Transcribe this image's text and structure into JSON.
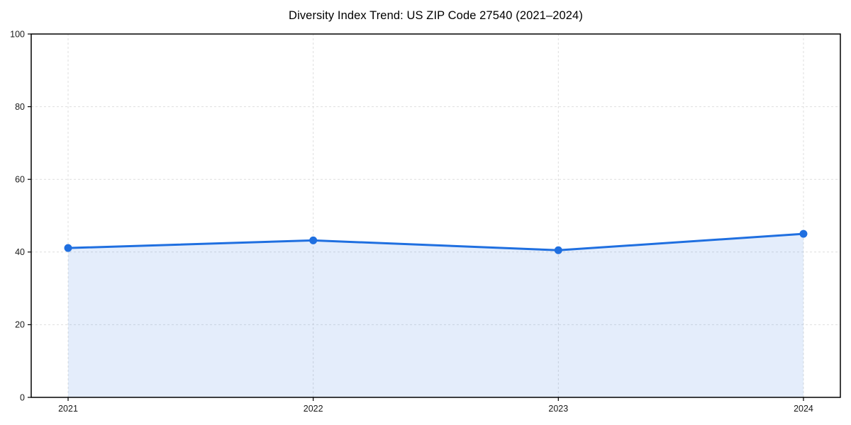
{
  "chart_data": {
    "type": "line",
    "title": "Diversity Index Trend: US ZIP Code 27540 (2021–2024)",
    "categories": [
      "2021",
      "2022",
      "2023",
      "2024"
    ],
    "series": [
      {
        "name": "Diversity Index",
        "values": [
          41.1,
          43.2,
          40.5,
          45.0
        ]
      }
    ],
    "xlabel": "",
    "ylabel": "",
    "ylim": [
      0,
      100
    ],
    "yticks": [
      0,
      20,
      40,
      60,
      80,
      100
    ],
    "grid": true,
    "grid_style": "dashed",
    "legend": false,
    "marker": "circle",
    "area_fill": true,
    "colors": {
      "line": "#1f6fe0",
      "marker": "#1f6fe0",
      "fill": "rgba(31,111,224,0.12)",
      "gridline": "#dedede",
      "frame": "#000000",
      "tick_label": "#1a1a1a",
      "background": "#ffffff"
    }
  }
}
